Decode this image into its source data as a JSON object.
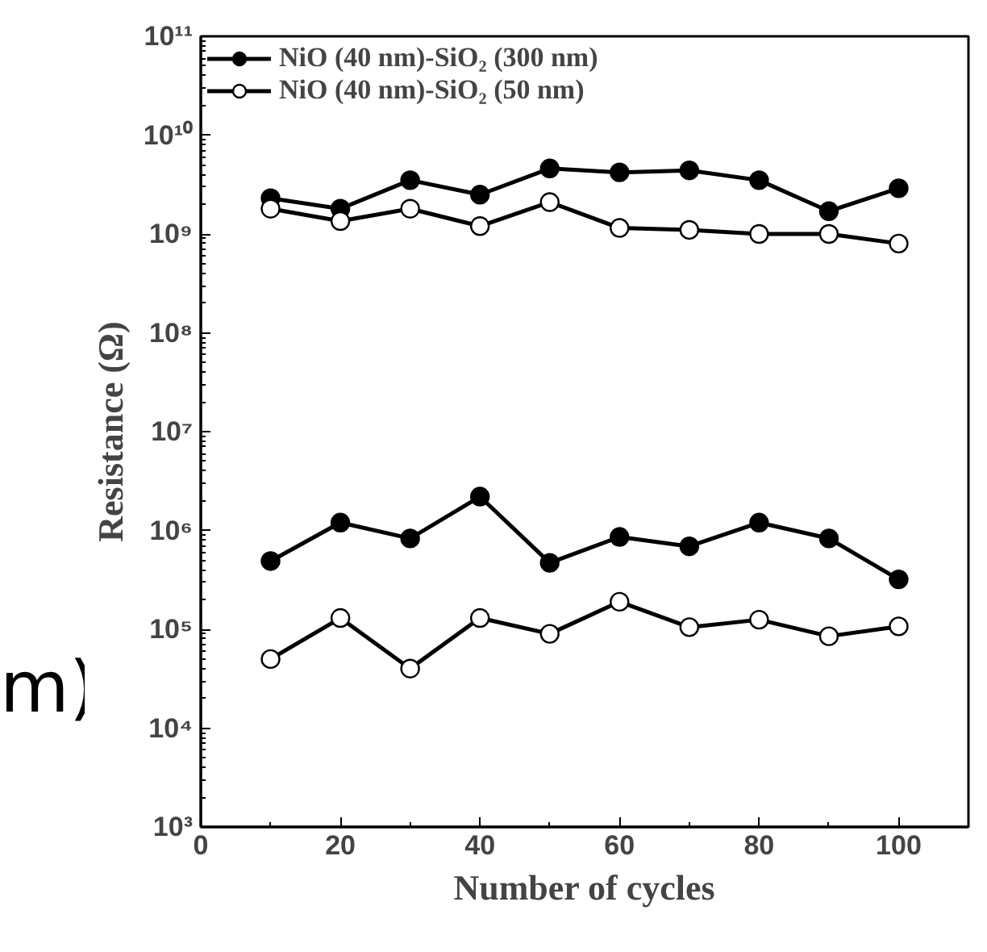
{
  "chart_data": {
    "type": "line",
    "xlabel": "Number of cycles",
    "ylabel": "Resistance (Ω)",
    "log": "y",
    "legend": "top left",
    "marker": "circle",
    "line_style": "solid",
    "grid": false,
    "x": [
      10,
      20,
      30,
      40,
      50,
      60,
      70,
      80,
      90,
      100
    ],
    "xlim": [
      0,
      110
    ],
    "xticks": [
      0,
      20,
      40,
      60,
      80,
      100
    ],
    "ylim": [
      1000,
      100000000000
    ],
    "yticks": [
      {
        "value": 1000,
        "label": "10³"
      },
      {
        "value": 10000,
        "label": "10⁴"
      },
      {
        "value": 100000,
        "label": "10⁵"
      },
      {
        "value": 1000000,
        "label": "10⁶"
      },
      {
        "value": 10000000,
        "label": "10⁷"
      },
      {
        "value": 100000000,
        "label": "10⁸"
      },
      {
        "value": 1000000000,
        "label": "10⁹"
      },
      {
        "value": 10000000000,
        "label": "10¹⁰"
      },
      {
        "value": 100000000000,
        "label": "10¹¹"
      }
    ],
    "annotations": [
      "m)"
    ],
    "series": [
      {
        "name": "NiO (40 nm)-SiO₂ (300 nm)",
        "color": "#000000",
        "colors": [
          "#000000",
          "#000000",
          "#000000",
          "#000000",
          "#000000",
          "#000000",
          "#000000",
          "#000000",
          "#000000",
          "#000000"
        ],
        "values": [
          2300000000.0,
          1800000000.0,
          3500000000.0,
          2500000000.0,
          4600000000.0,
          4200000000.0,
          4400000000.0,
          3500000000.0,
          1700000000.0,
          2900000000.0
        ]
      },
      {
        "name": "NiO (40 nm)-SiO₂ (50 nm)",
        "color": "#000000",
        "colors": [
          "#ffffff",
          "#ffffff",
          "#ffffff",
          "#ffffff",
          "#ffffff",
          "#ffffff",
          "#ffffff",
          "#ffffff",
          "#ffffff",
          "#ffffff"
        ],
        "values": [
          1800000000.0,
          1350000000.0,
          1800000000.0,
          1200000000.0,
          2100000000.0,
          1150000000.0,
          1100000000.0,
          1000000000.0,
          1000000000.0,
          800000000.0
        ]
      },
      {
        "color": "#000000",
        "colors": [
          "#000000",
          "#000000",
          "#000000",
          "#000000",
          "#000000",
          "#000000",
          "#000000",
          "#000000",
          "#000000",
          "#000000"
        ],
        "values": [
          490000.0,
          1200000.0,
          830000.0,
          2200000.0,
          470000.0,
          860000.0,
          690000.0,
          1200000.0,
          830000.0,
          320000.0
        ]
      },
      {
        "color": "#000000",
        "colors": [
          "#ffffff",
          "#ffffff",
          "#ffffff",
          "#ffffff",
          "#ffffff",
          "#ffffff",
          "#ffffff",
          "#ffffff",
          "#ffffff",
          "#ffffff"
        ],
        "values": [
          50000.0,
          130000.0,
          40000.0,
          130000.0,
          90000.0,
          190000.0,
          105000.0,
          125000.0,
          85000.0,
          107000.0
        ]
      }
    ]
  }
}
